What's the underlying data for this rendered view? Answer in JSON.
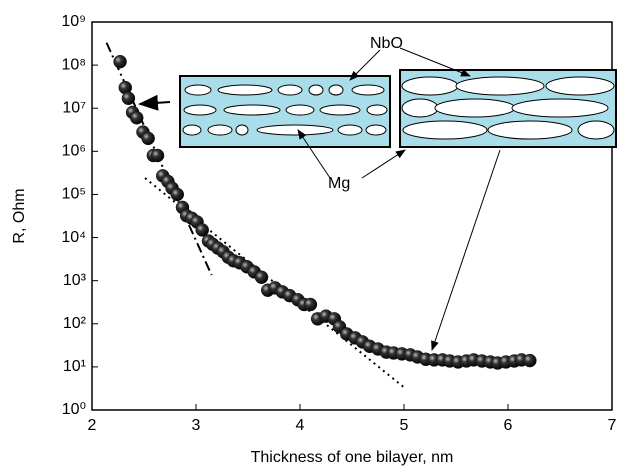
{
  "chart_data": {
    "type": "scatter",
    "x_label": "Thickness of one bilayer, nm",
    "y_label": "R, Ohm",
    "xlim": [
      2,
      7
    ],
    "xticks": [
      2,
      3,
      4,
      5,
      6,
      7
    ],
    "ylim": [
      1,
      1000000000
    ],
    "yscale": "log",
    "yticks": [
      {
        "value": 1,
        "label": "10⁰"
      },
      {
        "value": 10,
        "label": "10¹"
      },
      {
        "value": 100,
        "label": "10²"
      },
      {
        "value": 1000,
        "label": "10³"
      },
      {
        "value": 10000,
        "label": "10⁴"
      },
      {
        "value": 100000,
        "label": "10⁵"
      },
      {
        "value": 1000000,
        "label": "10⁶"
      },
      {
        "value": 10000000,
        "label": "10⁷"
      },
      {
        "value": 100000000,
        "label": "10⁸"
      },
      {
        "value": 1000000000,
        "label": "10⁹"
      }
    ],
    "color": "#111111",
    "x": [
      2.27,
      2.32,
      2.35,
      2.39,
      2.43,
      2.49,
      2.54,
      2.59,
      2.63,
      2.68,
      2.73,
      2.77,
      2.82,
      2.87,
      2.91,
      2.96,
      3.01,
      3.06,
      3.12,
      3.16,
      3.21,
      3.26,
      3.31,
      3.36,
      3.42,
      3.49,
      3.56,
      3.63,
      3.69,
      3.76,
      3.83,
      3.9,
      3.98,
      4.04,
      4.1,
      4.17,
      4.25,
      4.33,
      4.38,
      4.45,
      4.53,
      4.6,
      4.67,
      4.75,
      4.83,
      4.9,
      4.98,
      5.06,
      5.13,
      5.21,
      5.29,
      5.37,
      5.44,
      5.52,
      5.6,
      5.67,
      5.75,
      5.83,
      5.9,
      5.98,
      6.06,
      6.13,
      6.21
    ],
    "values": [
      120000000,
      30000000,
      17000000,
      8000000,
      6000000,
      2800000,
      2000000,
      800000,
      800000,
      270000,
      200000,
      140000,
      100000,
      50000,
      32000,
      28000,
      23000,
      15000,
      8300,
      7000,
      5700,
      4700,
      3500,
      2900,
      2600,
      2100,
      1600,
      1200,
      600,
      680,
      550,
      450,
      360,
      280,
      280,
      130,
      150,
      130,
      85,
      58,
      47,
      38,
      30,
      26,
      22,
      21,
      20,
      19,
      17,
      15,
      14.5,
      14.5,
      13.7,
      13,
      13.7,
      14.5,
      13.7,
      13,
      12.3,
      13,
      13.7,
      14.5,
      14
    ],
    "fit_lines": [
      {
        "style": "dash-dot",
        "x": [
          2.14,
          3.15
        ],
        "values": [
          330000000,
          1350
        ]
      },
      {
        "style": "dotted",
        "x": [
          2.51,
          5.01
        ],
        "values": [
          240000,
          3.2
        ]
      }
    ],
    "annotations": [
      "NbO",
      "Mg"
    ]
  }
}
